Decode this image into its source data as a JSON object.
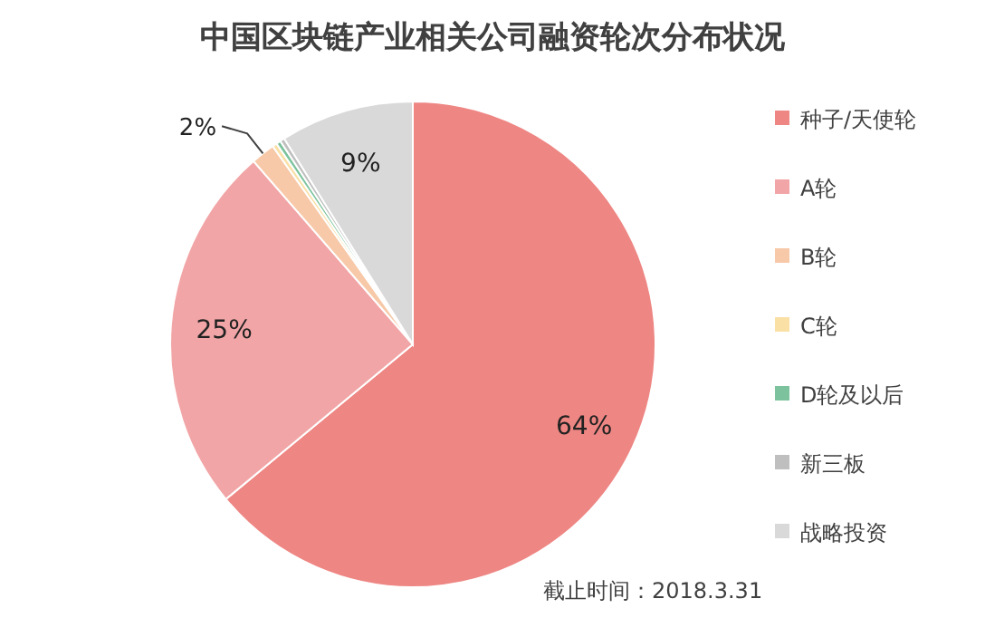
{
  "chart_data": {
    "type": "pie",
    "title": "中国区块链产业相关公司融资轮次分布状况",
    "categories": [
      "种子/天使轮",
      "A轮",
      "B轮",
      "C轮",
      "D轮及以后",
      "新三板",
      "战略投资"
    ],
    "values": [
      64,
      24.6,
      1.6,
      0.3,
      0.3,
      0.3,
      8.9
    ],
    "value_labels": [
      "64%",
      "25%",
      "2%",
      null,
      null,
      null,
      "9%"
    ],
    "colors": [
      "#ee8683",
      "#f2a5a6",
      "#f7c9a8",
      "#fbe0a6",
      "#7cc39d",
      "#bfbfbf",
      "#d9d9d9"
    ],
    "legend": "right",
    "annotations": [
      "截止时间：2018.3.31"
    ]
  }
}
